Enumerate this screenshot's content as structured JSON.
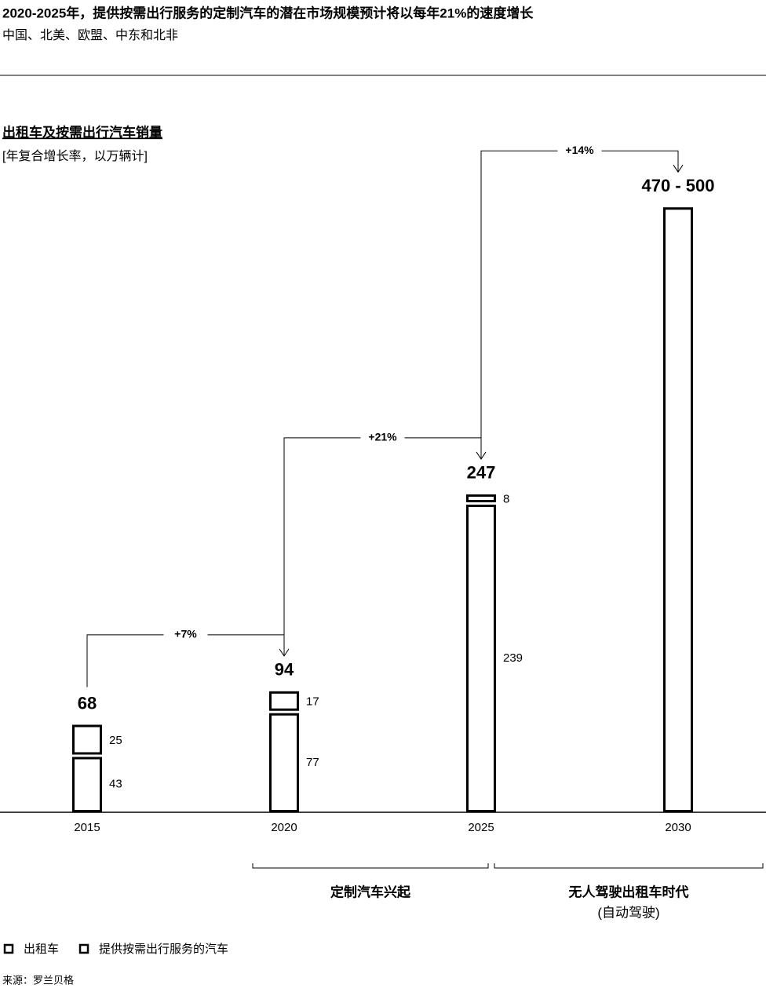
{
  "title": "2020-2025年，提供按需出行服务的定制汽车的潜在市场规模预计将以每年21%的速度增长",
  "subtitle": "中国、北美、欧盟、中东和北非",
  "source": "来源：罗兰贝格",
  "chart_data": {
    "type": "bar",
    "title": "出租车及按需出行汽车销量",
    "subtitle": "[年复合增长率，以万辆计]",
    "categories": [
      "2015",
      "2020",
      "2025",
      "2030"
    ],
    "series": [
      {
        "name": "出租车",
        "color": "#ffffff",
        "values": [
          43,
          77,
          239,
          null
        ]
      },
      {
        "name": "提供按需出行服务的汽车",
        "color": "#ffffff",
        "values": [
          25,
          17,
          8,
          null
        ]
      }
    ],
    "totals": {
      "values": [
        68,
        94,
        247,
        470
      ],
      "value_labels": [
        "68",
        "94",
        "247",
        "470 - 500"
      ]
    },
    "growth_labels": [
      "+7%",
      "+21%",
      "+14%"
    ],
    "phases": [
      {
        "label": "定制汽车兴起"
      },
      {
        "label": "无人驾驶出租车时代",
        "sublabel": "(自动驾驶)"
      }
    ],
    "ylim": [
      0,
      500
    ],
    "stacked": true
  }
}
